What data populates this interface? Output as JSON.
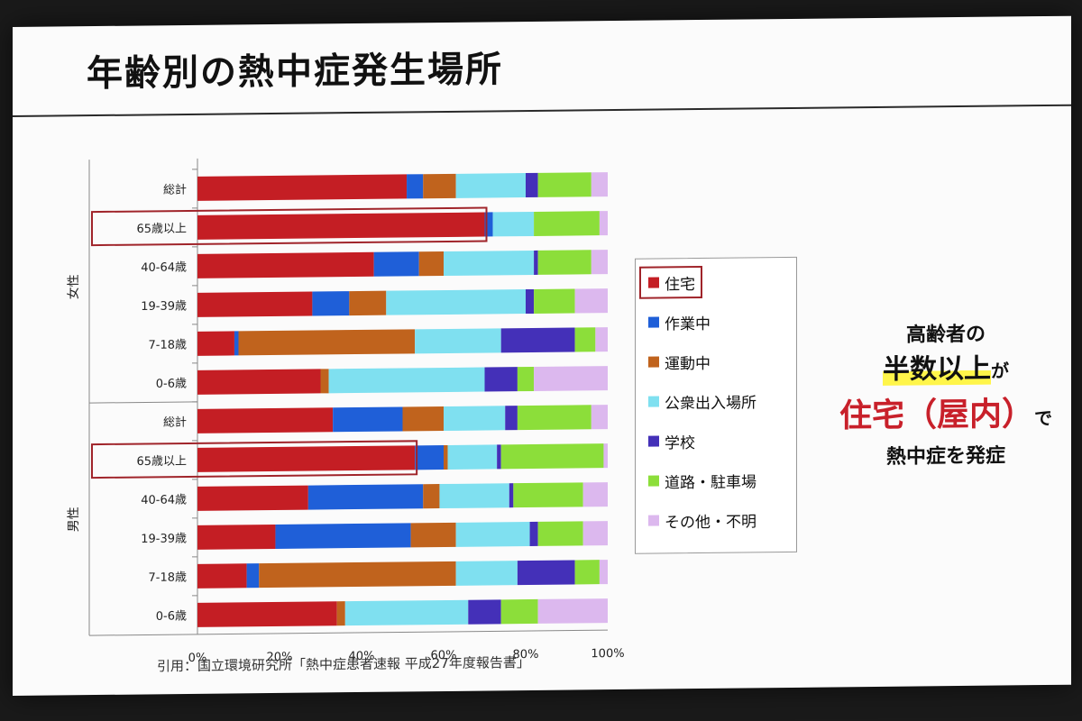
{
  "slide": {
    "title": "年齢別の熱中症発生場所",
    "citation": "引用：国立環境研究所「熱中症患者速報 平成27年度報告書」"
  },
  "callout": {
    "line1": "高齢者の",
    "line2_highlight": "半数以上",
    "line2_suffix": "が",
    "line3_main": "住宅（屋内）",
    "line3_suffix": "で",
    "line4": "熱中症を発症"
  },
  "chart_data": {
    "type": "bar",
    "orientation": "horizontal",
    "stacked": true,
    "percent": true,
    "groups": [
      "女性",
      "男性"
    ],
    "categories": [
      "総計",
      "65歳以上",
      "40-64歳",
      "19-39歳",
      "7-18歳",
      "0-6歳",
      "総計",
      "65歳以上",
      "40-64歳",
      "19-39歳",
      "7-18歳",
      "0-6歳"
    ],
    "category_groups": [
      "女性",
      "女性",
      "女性",
      "女性",
      "女性",
      "女性",
      "男性",
      "男性",
      "男性",
      "男性",
      "男性",
      "男性"
    ],
    "highlighted_categories": [
      1,
      7
    ],
    "xlim": [
      0,
      100
    ],
    "xticks": [
      "0%",
      "20%",
      "40%",
      "60%",
      "80%",
      "100%"
    ],
    "legend_position": "right",
    "series": [
      {
        "name": "住宅",
        "color": "#c41e24",
        "values": [
          51,
          70,
          43,
          28,
          9,
          30,
          33,
          53,
          27,
          19,
          12,
          34
        ]
      },
      {
        "name": "作業中",
        "color": "#1f5fd8",
        "values": [
          4,
          2,
          11,
          9,
          1,
          0,
          17,
          7,
          28,
          33,
          3,
          0
        ]
      },
      {
        "name": "運動中",
        "color": "#c0631d",
        "values": [
          8,
          0,
          6,
          9,
          43,
          2,
          10,
          1,
          4,
          11,
          48,
          2
        ]
      },
      {
        "name": "公衆出入場所",
        "color": "#7fe0f0",
        "values": [
          17,
          10,
          22,
          34,
          21,
          38,
          15,
          12,
          17,
          18,
          15,
          30
        ]
      },
      {
        "name": "学校",
        "color": "#4430b8",
        "values": [
          3,
          0,
          1,
          2,
          18,
          8,
          3,
          1,
          1,
          2,
          14,
          8
        ]
      },
      {
        "name": "道路・駐車場",
        "color": "#8cde3a",
        "values": [
          13,
          16,
          13,
          10,
          5,
          4,
          18,
          25,
          17,
          11,
          6,
          9
        ]
      },
      {
        "name": "その他・不明",
        "color": "#dcb8ee",
        "values": [
          4,
          2,
          4,
          8,
          3,
          18,
          4,
          1,
          6,
          6,
          2,
          17
        ]
      }
    ]
  }
}
